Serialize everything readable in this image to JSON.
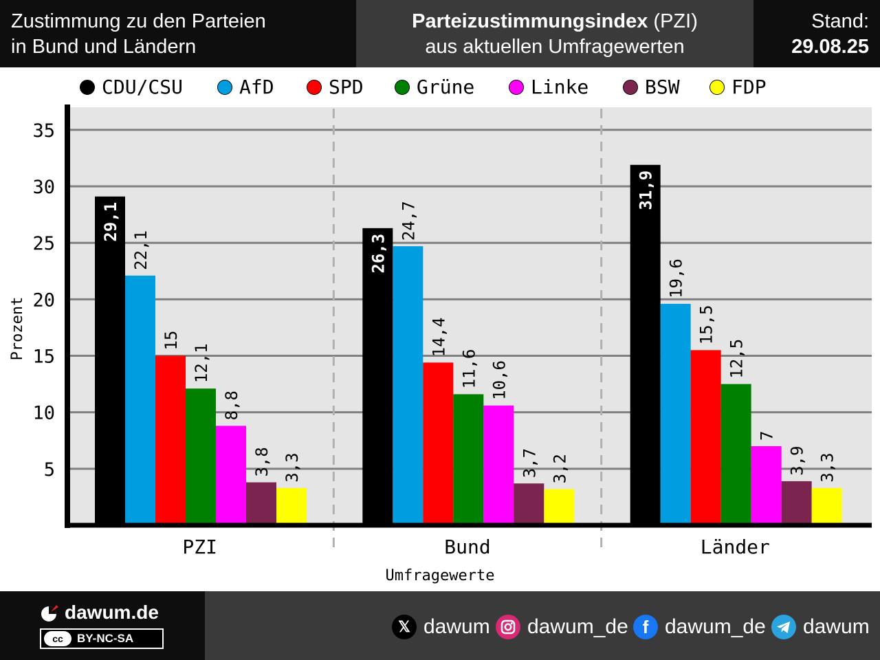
{
  "header": {
    "left_line1": "Zustimmung zu den Parteien",
    "left_line2": "in Bund und Ländern",
    "title_bold": "Parteizustimmungsindex",
    "title_suffix": " (PZI)",
    "subtitle": "aus aktuellen Umfragewerten",
    "stand_label": "Stand:",
    "stand_date": "29.08.25"
  },
  "legend": [
    {
      "label": "CDU/CSU",
      "color": "#000000"
    },
    {
      "label": "AfD",
      "color": "#009ee0"
    },
    {
      "label": "SPD",
      "color": "#ff0000"
    },
    {
      "label": "Grüne",
      "color": "#008000"
    },
    {
      "label": "Linke",
      "color": "#ff00ff"
    },
    {
      "label": "BSW",
      "color": "#7b2450"
    },
    {
      "label": "FDP",
      "color": "#ffff00"
    }
  ],
  "chart_data": {
    "type": "bar",
    "title": "",
    "xlabel": "Umfragewerte",
    "ylabel": "Prozent",
    "ylim": [
      0,
      37
    ],
    "yticks": [
      5,
      10,
      15,
      20,
      25,
      30,
      35
    ],
    "grid": true,
    "legend_position": "top",
    "categories": [
      "PZI",
      "Bund",
      "Länder"
    ],
    "series": [
      {
        "name": "CDU/CSU",
        "color": "#000000",
        "values": [
          29.1,
          26.3,
          31.9
        ],
        "labels": [
          "29,1",
          "26,3",
          "31,9"
        ]
      },
      {
        "name": "AfD",
        "color": "#009ee0",
        "values": [
          22.1,
          24.7,
          19.6
        ],
        "labels": [
          "22,1",
          "24,7",
          "19,6"
        ]
      },
      {
        "name": "SPD",
        "color": "#ff0000",
        "values": [
          15,
          14.4,
          15.5
        ],
        "labels": [
          "15",
          "14,4",
          "15,5"
        ]
      },
      {
        "name": "Grüne",
        "color": "#008000",
        "values": [
          12.1,
          11.6,
          12.5
        ],
        "labels": [
          "12,1",
          "11,6",
          "12,5"
        ]
      },
      {
        "name": "Linke",
        "color": "#ff00ff",
        "values": [
          8.8,
          10.6,
          7
        ],
        "labels": [
          "8,8",
          "10,6",
          "7"
        ]
      },
      {
        "name": "BSW",
        "color": "#7b2450",
        "values": [
          3.8,
          3.7,
          3.9
        ],
        "labels": [
          "3,8",
          "3,7",
          "3,9"
        ]
      },
      {
        "name": "FDP",
        "color": "#ffff00",
        "values": [
          3.3,
          3.2,
          3.3
        ],
        "labels": [
          "3,3",
          "3,2",
          "3,3"
        ]
      }
    ]
  },
  "footer": {
    "brand": "dawum.de",
    "license": "BY-NC-SA",
    "license_icon": "cc",
    "socials": [
      {
        "icon": "x-icon",
        "label": "dawum",
        "color": "#000000"
      },
      {
        "icon": "instagram-icon",
        "label": "dawum_de",
        "color": "#d62976"
      },
      {
        "icon": "facebook-icon",
        "label": "dawum_de",
        "color": "#1877f2"
      },
      {
        "icon": "telegram-icon",
        "label": "dawum",
        "color": "#2aa3de"
      }
    ]
  }
}
